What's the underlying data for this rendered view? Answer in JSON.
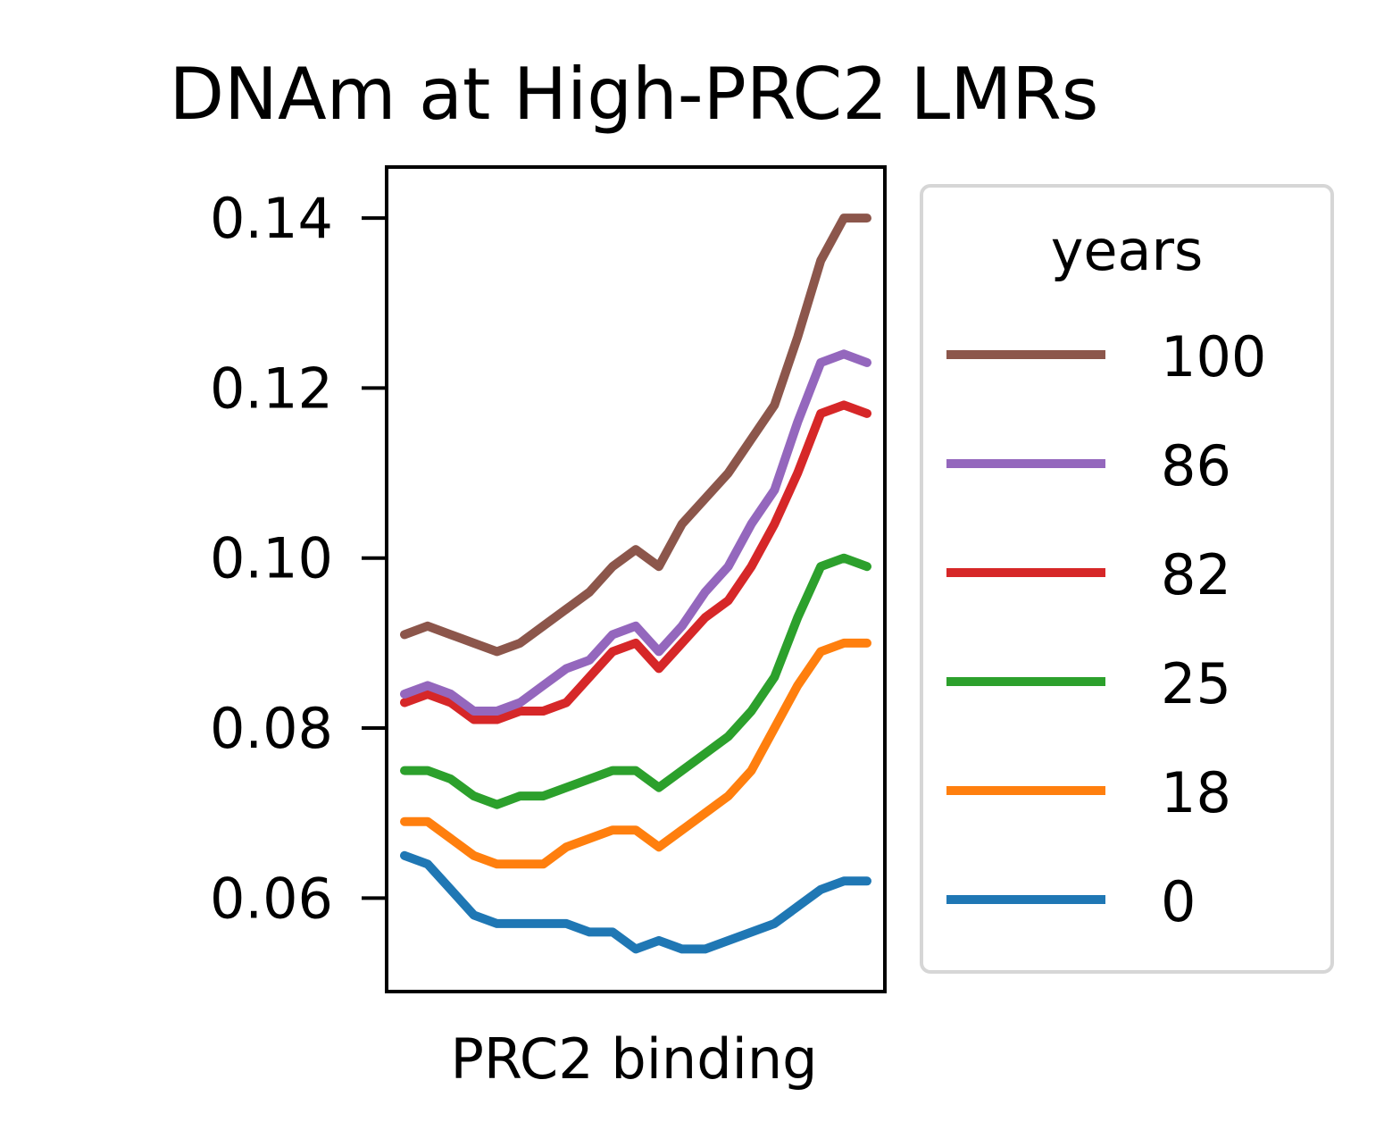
{
  "chart_data": {
    "type": "line",
    "title": "DNAm at High-PRC2 LMRs",
    "xlabel": "PRC2 binding",
    "ylabel": "",
    "ylim": [
      0.049,
      0.146
    ],
    "x_ticks_shown": false,
    "y_ticks": [
      0.06,
      0.08,
      0.1,
      0.12,
      0.14
    ],
    "y_tick_labels": [
      "0.06",
      "0.08",
      "0.10",
      "0.12",
      "0.14"
    ],
    "grid": false,
    "legend": {
      "title": "years",
      "placement": "outside-right"
    },
    "x": [
      0,
      0.05,
      0.1,
      0.15,
      0.2,
      0.25,
      0.3,
      0.35,
      0.4,
      0.45,
      0.5,
      0.55,
      0.6,
      0.65,
      0.7,
      0.75,
      0.8,
      0.85,
      0.9,
      0.95,
      1.0
    ],
    "series": [
      {
        "name": "100",
        "color": "#8c564b",
        "values": [
          0.091,
          0.092,
          0.091,
          0.09,
          0.089,
          0.09,
          0.092,
          0.094,
          0.096,
          0.099,
          0.101,
          0.099,
          0.104,
          0.107,
          0.11,
          0.114,
          0.118,
          0.126,
          0.135,
          0.14,
          0.14
        ]
      },
      {
        "name": "86",
        "color": "#9467bd",
        "values": [
          0.084,
          0.085,
          0.084,
          0.082,
          0.082,
          0.083,
          0.085,
          0.087,
          0.088,
          0.091,
          0.092,
          0.089,
          0.092,
          0.096,
          0.099,
          0.104,
          0.108,
          0.116,
          0.123,
          0.124,
          0.123
        ]
      },
      {
        "name": "82",
        "color": "#d62728",
        "values": [
          0.083,
          0.084,
          0.083,
          0.081,
          0.081,
          0.082,
          0.082,
          0.083,
          0.086,
          0.089,
          0.09,
          0.087,
          0.09,
          0.093,
          0.095,
          0.099,
          0.104,
          0.11,
          0.117,
          0.118,
          0.117
        ]
      },
      {
        "name": "25",
        "color": "#2ca02c",
        "values": [
          0.075,
          0.075,
          0.074,
          0.072,
          0.071,
          0.072,
          0.072,
          0.073,
          0.074,
          0.075,
          0.075,
          0.073,
          0.075,
          0.077,
          0.079,
          0.082,
          0.086,
          0.093,
          0.099,
          0.1,
          0.099
        ]
      },
      {
        "name": "18",
        "color": "#ff7f0e",
        "values": [
          0.069,
          0.069,
          0.067,
          0.065,
          0.064,
          0.064,
          0.064,
          0.066,
          0.067,
          0.068,
          0.068,
          0.066,
          0.068,
          0.07,
          0.072,
          0.075,
          0.08,
          0.085,
          0.089,
          0.09,
          0.09
        ]
      },
      {
        "name": "0",
        "color": "#1f77b4",
        "values": [
          0.065,
          0.064,
          0.061,
          0.058,
          0.057,
          0.057,
          0.057,
          0.057,
          0.056,
          0.056,
          0.054,
          0.055,
          0.054,
          0.054,
          0.055,
          0.056,
          0.057,
          0.059,
          0.061,
          0.062,
          0.062
        ]
      }
    ]
  }
}
